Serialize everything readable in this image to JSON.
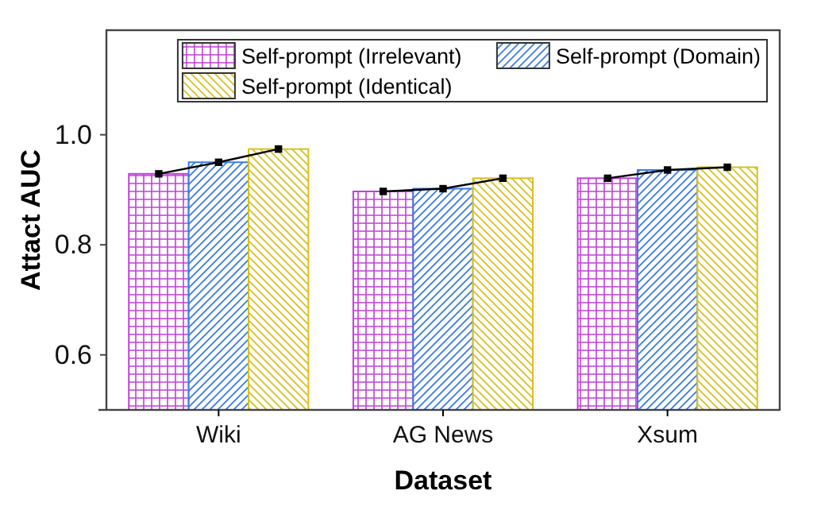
{
  "chart_data": {
    "type": "bar",
    "xlabel": "Dataset",
    "ylabel": "Attact AUC",
    "categories": [
      "Wiki",
      "AG News",
      "Xsum"
    ],
    "series": [
      {
        "name": "Self-prompt (Irrelevant)",
        "color": "#c040d8",
        "values": [
          0.929,
          0.897,
          0.921
        ]
      },
      {
        "name": "Self-prompt (Domain)",
        "color": "#3a7be0",
        "values": [
          0.95,
          0.902,
          0.936
        ]
      },
      {
        "name": "Self-prompt (Identical)",
        "color": "#d8c020",
        "values": [
          0.974,
          0.921,
          0.941
        ]
      }
    ],
    "ylim": [
      0.5,
      1.19
    ],
    "yticks": [
      {
        "value": 0.5,
        "label": null
      },
      0.6,
      0.8,
      {
        "value": 1.0,
        "label": "1.0"
      }
    ],
    "legend": "top right"
  }
}
